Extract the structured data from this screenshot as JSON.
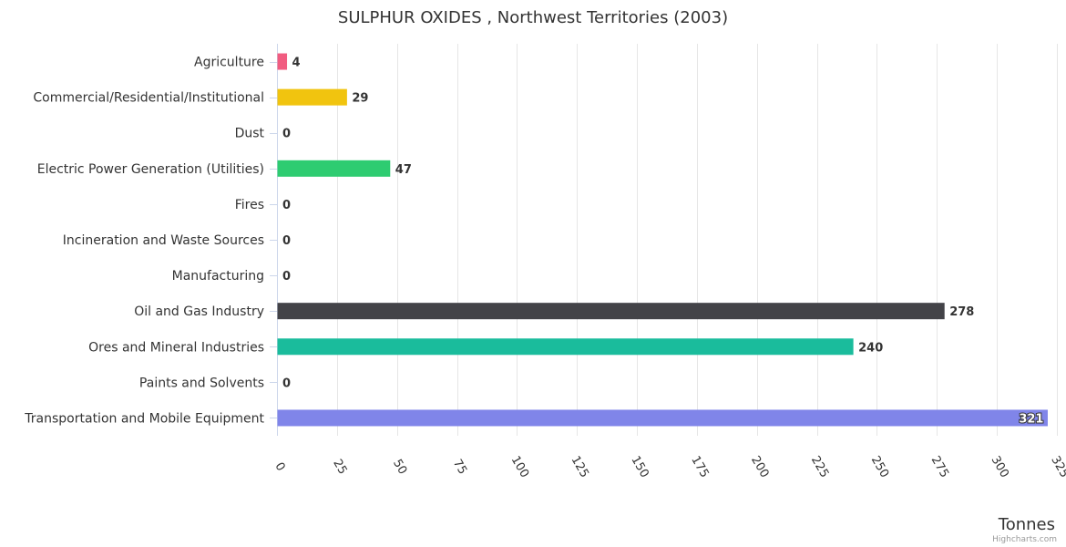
{
  "chart_data": {
    "type": "bar",
    "orientation": "horizontal",
    "title": "SULPHUR OXIDES , Northwest Territories (2003)",
    "xlabel": "Tonnes",
    "categories": [
      "Agriculture",
      "Commercial/Residential/Institutional",
      "Dust",
      "Electric Power Generation (Utilities)",
      "Fires",
      "Incineration and Waste Sources",
      "Manufacturing",
      "Oil and Gas Industry",
      "Ores and Mineral Industries",
      "Paints and Solvents",
      "Transportation and Mobile Equipment"
    ],
    "values": [
      4,
      29,
      0,
      47,
      0,
      0,
      0,
      278,
      240,
      0,
      321
    ],
    "data_labels": [
      "4",
      "29",
      "0",
      "47",
      "0",
      "0",
      "0",
      "278",
      "240",
      "0",
      "321"
    ],
    "colors": [
      "#f15c80",
      "#f1c40f",
      "#2b908f",
      "#2ecc71",
      "#e4d354",
      "#f45b5b",
      "#91e8e1",
      "#434348",
      "#1abc9c",
      "#8085e9",
      "#8085e9"
    ],
    "xlim": [
      0,
      325
    ],
    "tick_values": [
      0,
      25,
      50,
      75,
      100,
      125,
      150,
      175,
      200,
      225,
      250,
      275,
      300,
      325
    ],
    "tick_labels": [
      "0",
      "25",
      "50",
      "75",
      "100",
      "125",
      "150",
      "175",
      "200",
      "225",
      "250",
      "275",
      "300",
      "325"
    ],
    "grid": true,
    "legend": "none"
  },
  "credits": "Highcharts.com"
}
